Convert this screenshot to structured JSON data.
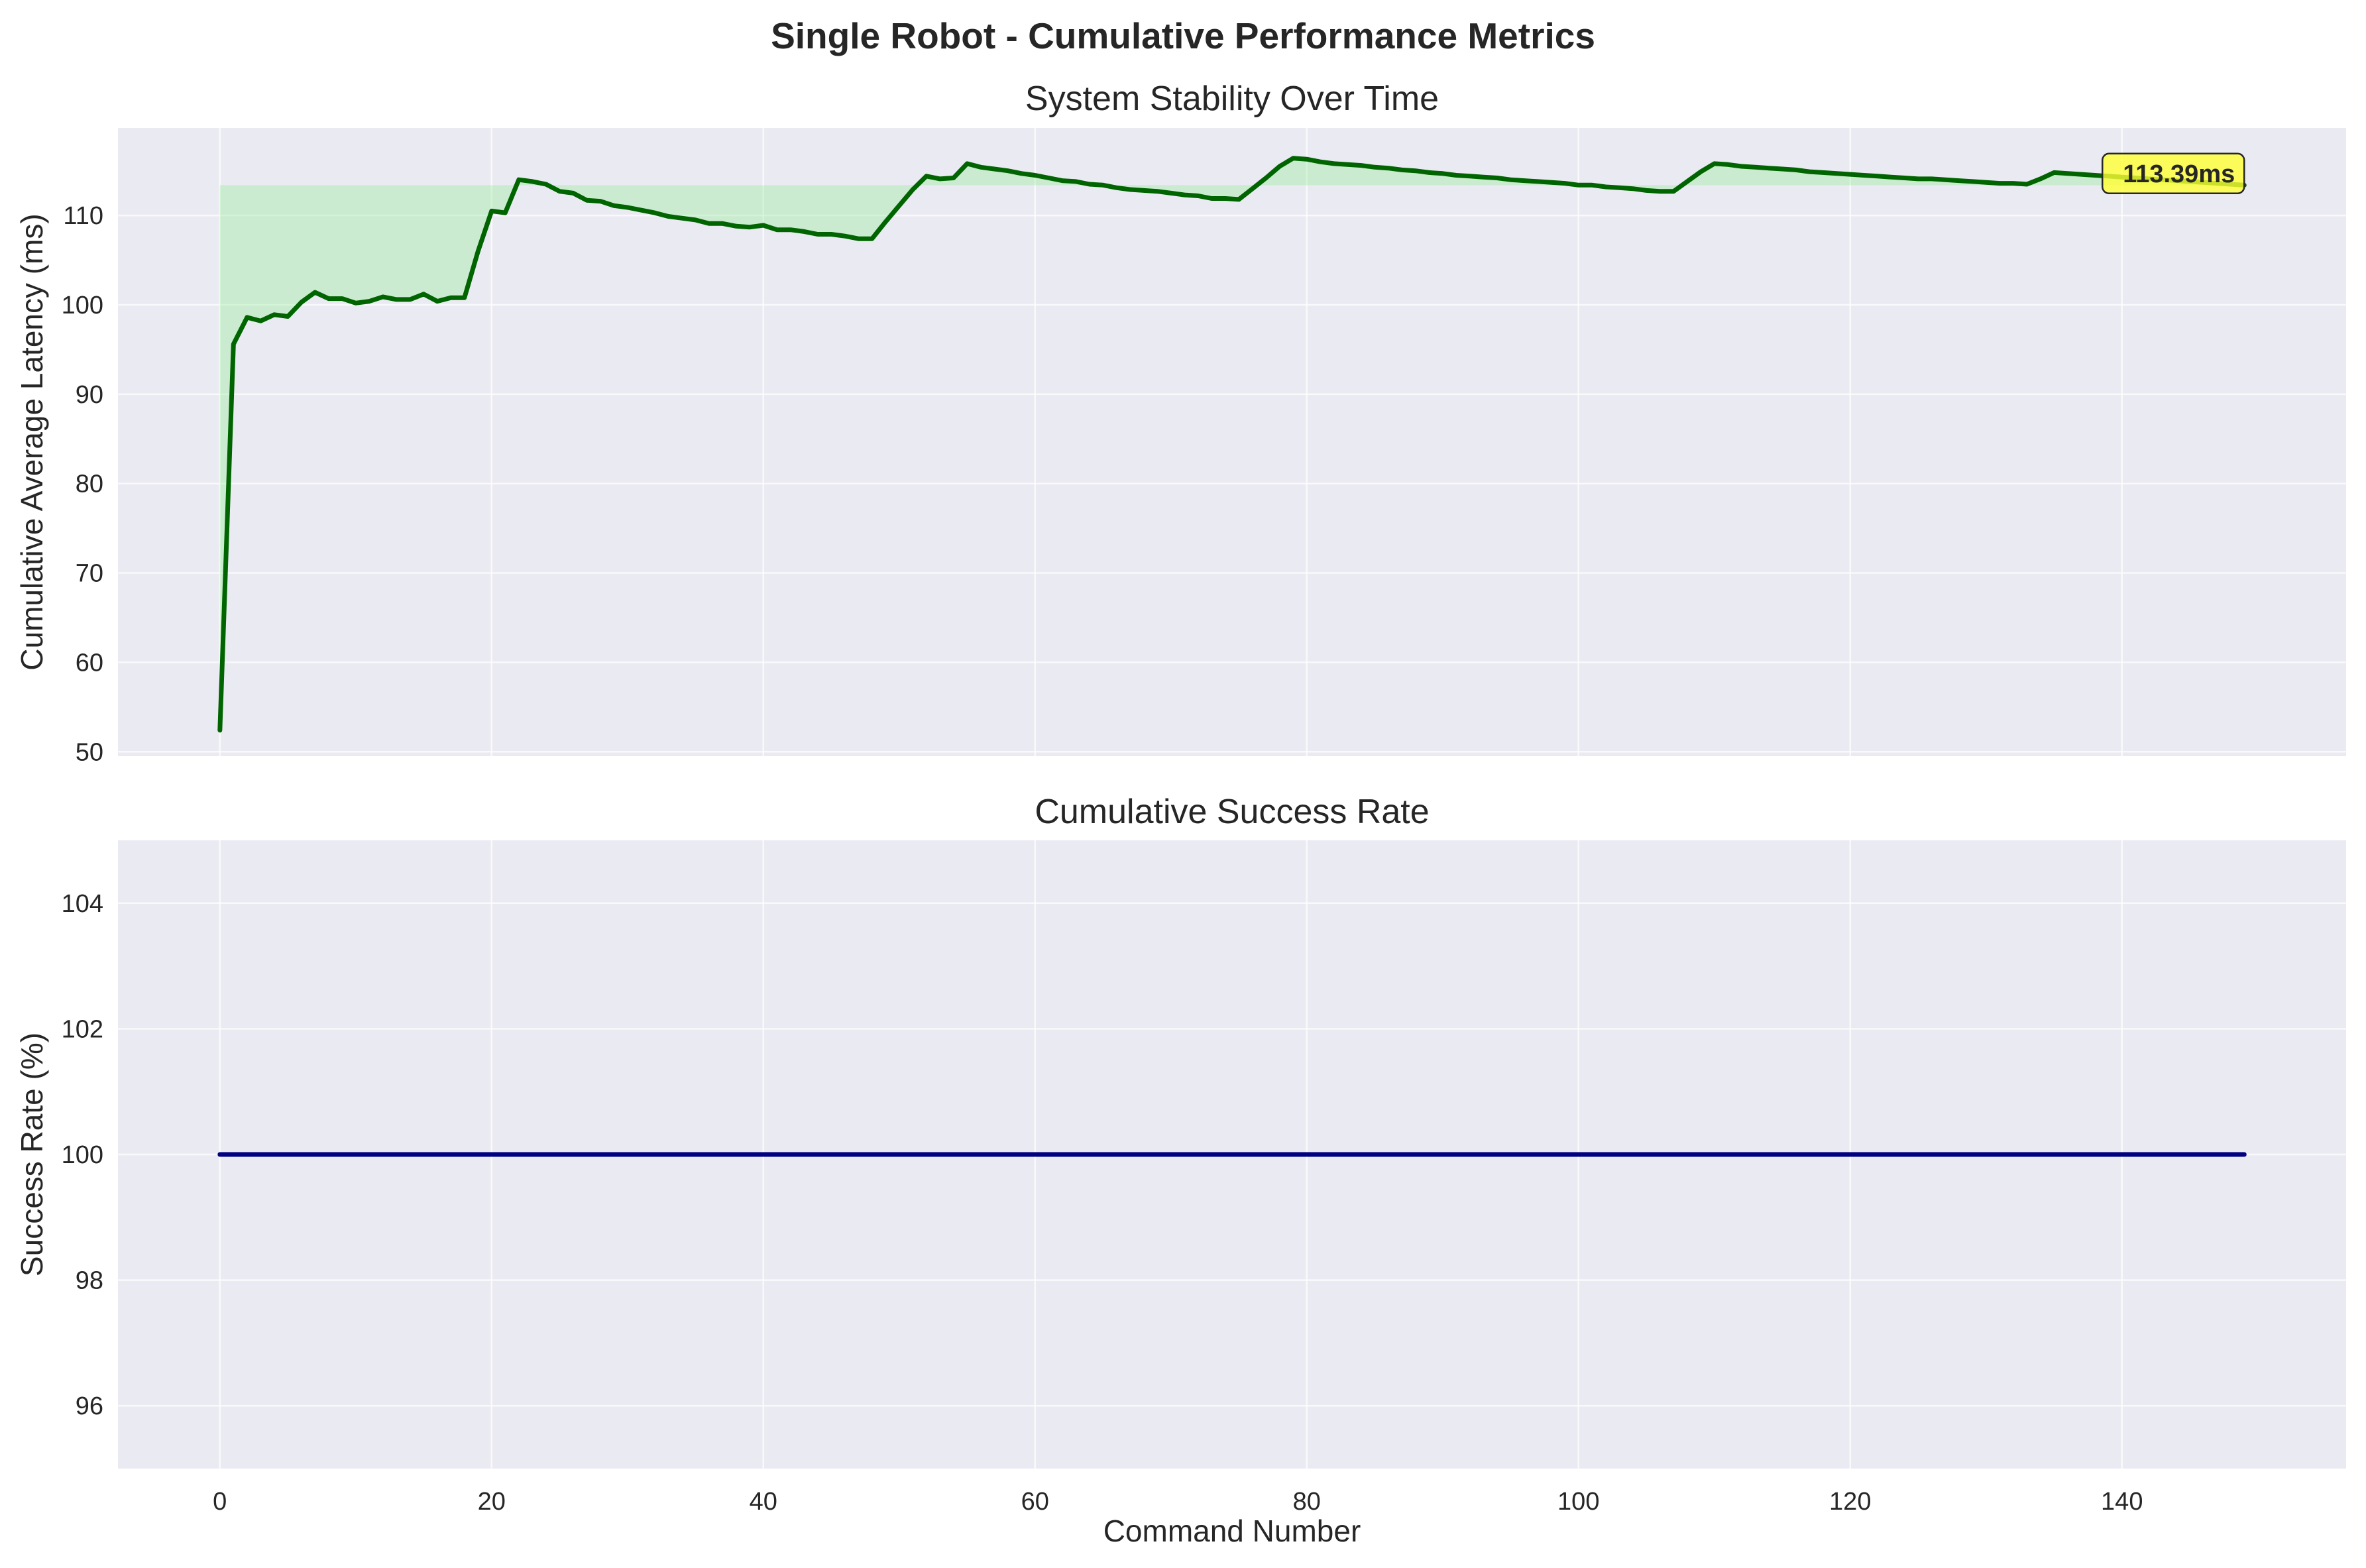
{
  "figure_title": "Single Robot - Cumulative Performance Metrics",
  "colors": {
    "axes_bg": "#eaeaf2",
    "grid": "#ffffff",
    "latency_line": "#006400",
    "latency_fill": "#90ee90",
    "success_line": "#000080",
    "annotation_bg": "#ffff33"
  },
  "chart_data": [
    {
      "type": "area",
      "title": "System Stability Over Time",
      "xlabel": "",
      "ylabel": "Cumulative Average Latency (ms)",
      "xlim": [
        -7.5,
        156.5
      ],
      "ylim": [
        49.5,
        119.8
      ],
      "xticks": [
        0,
        20,
        40,
        60,
        80,
        100,
        120,
        140
      ],
      "yticks": [
        50,
        60,
        70,
        80,
        90,
        100,
        110
      ],
      "grid": true,
      "fill_baseline": 113.39,
      "annotation": {
        "text": "113.39ms",
        "x": 149,
        "y": 114.7
      },
      "series": [
        {
          "x": [
            0,
            1,
            2,
            3,
            4,
            5,
            6,
            7,
            8,
            9,
            10,
            11,
            12,
            13,
            14,
            15,
            16,
            17,
            18,
            19,
            20,
            21,
            22,
            23,
            24,
            25,
            26,
            27,
            28,
            29,
            30,
            31,
            32,
            33,
            34,
            35,
            36,
            37,
            38,
            39,
            40,
            41,
            42,
            43,
            44,
            45,
            46,
            47,
            48,
            49,
            50,
            51,
            52,
            53,
            54,
            55,
            56,
            57,
            58,
            59,
            60,
            61,
            62,
            63,
            64,
            65,
            66,
            67,
            68,
            69,
            70,
            71,
            72,
            73,
            74,
            75,
            76,
            77,
            78,
            79,
            80,
            81,
            82,
            83,
            84,
            85,
            86,
            87,
            88,
            89,
            90,
            91,
            92,
            93,
            94,
            95,
            96,
            97,
            98,
            99,
            100,
            101,
            102,
            103,
            104,
            105,
            106,
            107,
            108,
            109,
            110,
            111,
            112,
            113,
            114,
            115,
            116,
            117,
            118,
            119,
            120,
            121,
            122,
            123,
            124,
            125,
            126,
            127,
            128,
            129,
            130,
            131,
            132,
            133,
            134,
            135,
            136,
            137,
            138,
            139,
            140,
            141,
            142,
            143,
            144,
            145,
            146,
            147,
            148,
            149
          ],
          "values": [
            52.4,
            95.6,
            98.6,
            98.2,
            98.9,
            98.7,
            100.3,
            101.4,
            100.7,
            100.7,
            100.2,
            100.4,
            100.9,
            100.6,
            100.6,
            101.2,
            100.4,
            100.8,
            100.8,
            106.0,
            110.5,
            110.3,
            114.0,
            113.8,
            113.5,
            112.7,
            112.5,
            111.7,
            111.6,
            111.1,
            110.9,
            110.6,
            110.3,
            109.9,
            109.7,
            109.5,
            109.1,
            109.1,
            108.8,
            108.7,
            108.9,
            108.4,
            108.4,
            108.2,
            107.9,
            107.9,
            107.7,
            107.4,
            107.4,
            109.3,
            111.1,
            112.9,
            114.4,
            114.1,
            114.2,
            115.8,
            115.4,
            115.2,
            115.0,
            114.7,
            114.5,
            114.2,
            113.9,
            113.8,
            113.5,
            113.4,
            113.1,
            112.9,
            112.8,
            112.7,
            112.5,
            112.3,
            112.2,
            111.9,
            111.9,
            111.8,
            113.0,
            114.2,
            115.5,
            116.4,
            116.3,
            116.0,
            115.8,
            115.7,
            115.6,
            115.4,
            115.3,
            115.1,
            115.0,
            114.8,
            114.7,
            114.5,
            114.4,
            114.3,
            114.2,
            114.0,
            113.9,
            113.8,
            113.7,
            113.6,
            113.4,
            113.4,
            113.2,
            113.1,
            113.0,
            112.8,
            112.7,
            112.7,
            113.8,
            114.9,
            115.8,
            115.7,
            115.5,
            115.4,
            115.3,
            115.2,
            115.1,
            114.9,
            114.8,
            114.7,
            114.6,
            114.5,
            114.4,
            114.3,
            114.2,
            114.1,
            114.1,
            114.0,
            113.9,
            113.8,
            113.7,
            113.6,
            113.6,
            113.5,
            114.1,
            114.8,
            114.7,
            114.6,
            114.5,
            114.4,
            114.3,
            114.2,
            114.1,
            114.0,
            113.9,
            113.8,
            113.7,
            113.6,
            113.5,
            113.39
          ]
        }
      ]
    },
    {
      "type": "line",
      "title": "Cumulative Success Rate",
      "xlabel": "Command Number",
      "ylabel": "Success Rate (%)",
      "xlim": [
        -7.5,
        156.5
      ],
      "ylim": [
        95,
        105
      ],
      "xticks": [
        0,
        20,
        40,
        60,
        80,
        100,
        120,
        140
      ],
      "yticks": [
        96,
        98,
        100,
        102,
        104
      ],
      "grid": true,
      "series": [
        {
          "x": [
            0,
            149
          ],
          "values": [
            100,
            100
          ]
        }
      ]
    }
  ]
}
